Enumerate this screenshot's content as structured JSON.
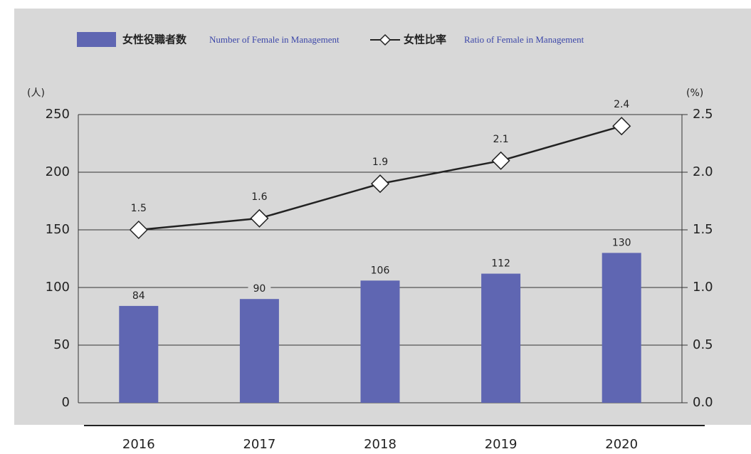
{
  "chart_data": {
    "type": "bar",
    "categories": [
      "2016",
      "2017",
      "2018",
      "2019",
      "2020"
    ],
    "series": [
      {
        "name": "女性役職者数",
        "name_en": "Number of Female in Management",
        "color": "#5f66b2",
        "type": "bar",
        "values": [
          84,
          90,
          106,
          112,
          130
        ]
      },
      {
        "name": "女性比率",
        "name_en": "Ratio of Female in Management",
        "color": "#222222",
        "type": "line",
        "axis": "y2",
        "values": [
          1.5,
          1.6,
          1.9,
          2.1,
          2.4
        ]
      }
    ],
    "ylabel": "(人)",
    "y2label": "(%)",
    "ylim": [
      0,
      250
    ],
    "yticks": [
      0,
      50,
      100,
      150,
      200,
      250
    ],
    "y2lim": [
      0,
      2.5
    ],
    "y2ticks": [
      {
        "value": 0,
        "label": "0.0"
      },
      0.5,
      {
        "value": 1,
        "label": "1.0"
      },
      1.5,
      {
        "value": 2,
        "label": "2.0"
      },
      2.5
    ],
    "grid": true,
    "legend": "top"
  }
}
